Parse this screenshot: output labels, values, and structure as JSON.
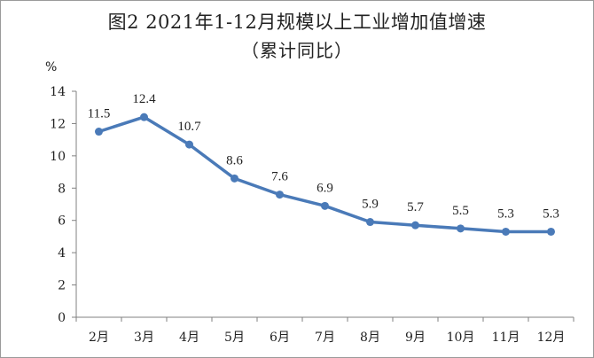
{
  "chart_data": {
    "type": "line",
    "title": "图2  2021年1-12月规模以上工业增加值增速",
    "subtitle": "（累计同比）",
    "ylabel": "%",
    "xlabel": "",
    "categories": [
      "2月",
      "3月",
      "4月",
      "5月",
      "6月",
      "7月",
      "8月",
      "9月",
      "10月",
      "11月",
      "12月"
    ],
    "series": [
      {
        "values": [
          11.5,
          12.4,
          10.7,
          8.6,
          7.6,
          6.9,
          5.9,
          5.7,
          5.5,
          5.3,
          5.3
        ]
      }
    ],
    "data_labels": [
      "11.5",
      "12.4",
      "10.7",
      "8.6",
      "7.6",
      "6.9",
      "5.9",
      "5.7",
      "5.5",
      "5.3",
      "5.3"
    ],
    "ylim": [
      0,
      14
    ],
    "yticks": [
      0,
      2,
      4,
      6,
      8,
      10,
      12,
      14
    ],
    "grid": false,
    "legend": "none",
    "colors": {
      "line": "#4a7ab8",
      "axis": "#808080"
    }
  }
}
